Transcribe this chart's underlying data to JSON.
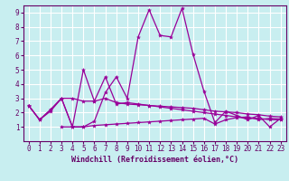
{
  "xlabel": "Windchill (Refroidissement éolien,°C)",
  "bg_color": "#c8eef0",
  "grid_color": "#ffffff",
  "line_color": "#990099",
  "spine_color": "#660066",
  "xlim": [
    -0.5,
    23.5
  ],
  "ylim": [
    0.0,
    9.5
  ],
  "xticks": [
    0,
    1,
    2,
    3,
    4,
    5,
    6,
    7,
    8,
    9,
    10,
    11,
    12,
    13,
    14,
    15,
    16,
    17,
    18,
    19,
    20,
    21,
    22,
    23
  ],
  "yticks": [
    1,
    2,
    3,
    4,
    5,
    6,
    7,
    8,
    9
  ],
  "lines": [
    {
      "x": [
        0,
        1,
        2,
        3,
        4,
        5,
        6,
        7,
        8,
        9,
        10,
        11,
        12,
        13,
        14,
        15,
        16,
        17,
        18,
        19,
        20,
        21,
        22,
        23
      ],
      "y": [
        2.5,
        1.5,
        2.1,
        3.0,
        3.0,
        2.8,
        2.8,
        3.0,
        2.7,
        2.6,
        2.55,
        2.5,
        2.45,
        2.4,
        2.35,
        2.3,
        2.2,
        2.1,
        2.05,
        2.0,
        1.9,
        1.85,
        1.75,
        1.7
      ]
    },
    {
      "x": [
        0,
        1,
        2,
        3,
        4,
        5,
        6,
        7,
        8,
        9,
        10,
        11,
        12,
        13,
        14,
        15,
        16,
        17,
        18,
        19,
        20,
        21,
        22,
        23
      ],
      "y": [
        2.5,
        1.5,
        2.2,
        3.0,
        1.0,
        1.0,
        1.4,
        3.4,
        4.5,
        3.0,
        7.3,
        9.2,
        7.4,
        7.3,
        9.3,
        6.1,
        3.5,
        1.3,
        2.1,
        1.8,
        1.5,
        1.8,
        1.0,
        1.6
      ]
    },
    {
      "x": [
        0,
        1,
        2,
        3,
        4,
        5,
        6,
        7,
        8,
        9,
        10,
        11,
        12,
        13,
        14,
        15,
        16,
        17,
        18,
        19,
        20,
        21,
        22,
        23
      ],
      "y": [
        2.5,
        1.5,
        2.2,
        3.0,
        1.0,
        5.0,
        2.8,
        4.5,
        2.6,
        2.7,
        2.6,
        2.5,
        2.4,
        2.3,
        2.2,
        2.1,
        2.0,
        1.9,
        1.8,
        1.7,
        1.6,
        1.6,
        1.5,
        1.5
      ]
    },
    {
      "x": [
        3,
        4,
        5,
        6,
        7,
        8,
        9,
        10,
        11,
        12,
        13,
        14,
        15,
        16,
        17,
        18,
        19,
        20,
        21,
        22,
        23
      ],
      "y": [
        1.0,
        1.0,
        1.0,
        1.1,
        1.15,
        1.2,
        1.25,
        1.3,
        1.35,
        1.4,
        1.45,
        1.5,
        1.55,
        1.6,
        1.2,
        1.5,
        1.65,
        1.7,
        1.5,
        1.6,
        1.55
      ]
    }
  ]
}
